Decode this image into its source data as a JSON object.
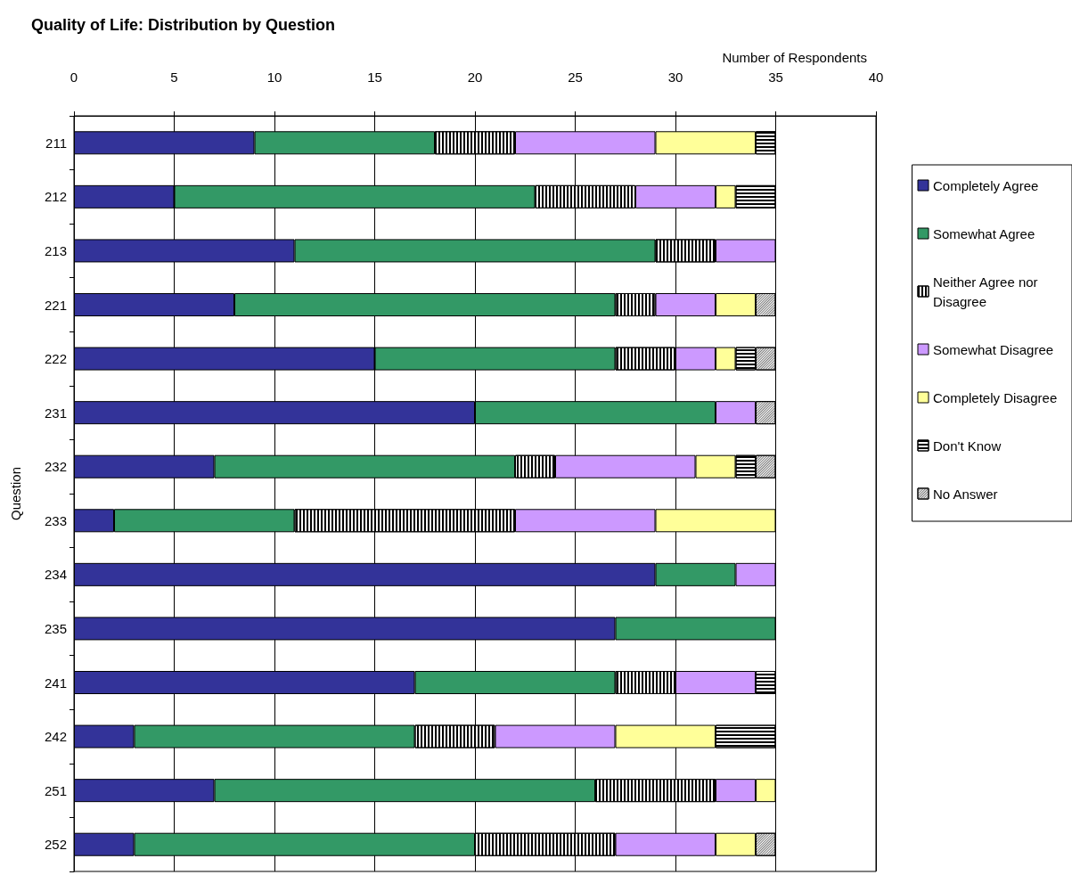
{
  "chart_data": {
    "type": "bar",
    "orientation": "horizontal",
    "stacked": true,
    "title": "Quality of Life: Distribution by Question",
    "xlabel": "Number of Respondents",
    "ylabel": "Question",
    "categories": [
      "211",
      "212",
      "213",
      "221",
      "222",
      "231",
      "232",
      "233",
      "234",
      "235",
      "241",
      "242",
      "251",
      "252"
    ],
    "series": [
      {
        "name": "Completely Agree",
        "color": "#333399",
        "values": [
          9,
          5,
          11,
          8,
          15,
          20,
          7,
          2,
          29,
          27,
          17,
          3,
          7,
          3
        ]
      },
      {
        "name": "Somewhat Agree",
        "color": "#339966",
        "values": [
          9,
          18,
          18,
          19,
          12,
          12,
          15,
          9,
          4,
          8,
          10,
          14,
          19,
          17
        ]
      },
      {
        "name": "Neither Agree nor Disagree",
        "color": "#ffffff",
        "values": [
          4,
          5,
          3,
          2,
          3,
          null,
          2,
          11,
          null,
          null,
          3,
          4,
          6,
          7
        ]
      },
      {
        "name": "Somewhat Disagree",
        "color": "#cc99ff",
        "values": [
          7,
          4,
          3,
          3,
          2,
          2,
          7,
          7,
          2,
          null,
          4,
          6,
          2,
          5
        ]
      },
      {
        "name": "Completely Disagree",
        "color": "#ffff99",
        "values": [
          5,
          1,
          null,
          2,
          1,
          null,
          2,
          6,
          null,
          null,
          null,
          5,
          1,
          2
        ]
      },
      {
        "name": "Don't Know",
        "color": "#ffffff",
        "values": [
          1,
          2,
          null,
          null,
          1,
          null,
          1,
          null,
          null,
          null,
          1,
          3,
          null,
          null
        ]
      },
      {
        "name": "No Answer",
        "color": "#ffffff",
        "values": [
          null,
          null,
          null,
          1,
          1,
          1,
          1,
          null,
          null,
          null,
          null,
          null,
          null,
          1
        ]
      }
    ],
    "xlim": [
      0,
      40
    ],
    "xticks": [
      0,
      5,
      10,
      15,
      20,
      25,
      30,
      35,
      40
    ],
    "grid": "x",
    "legend": "right"
  }
}
